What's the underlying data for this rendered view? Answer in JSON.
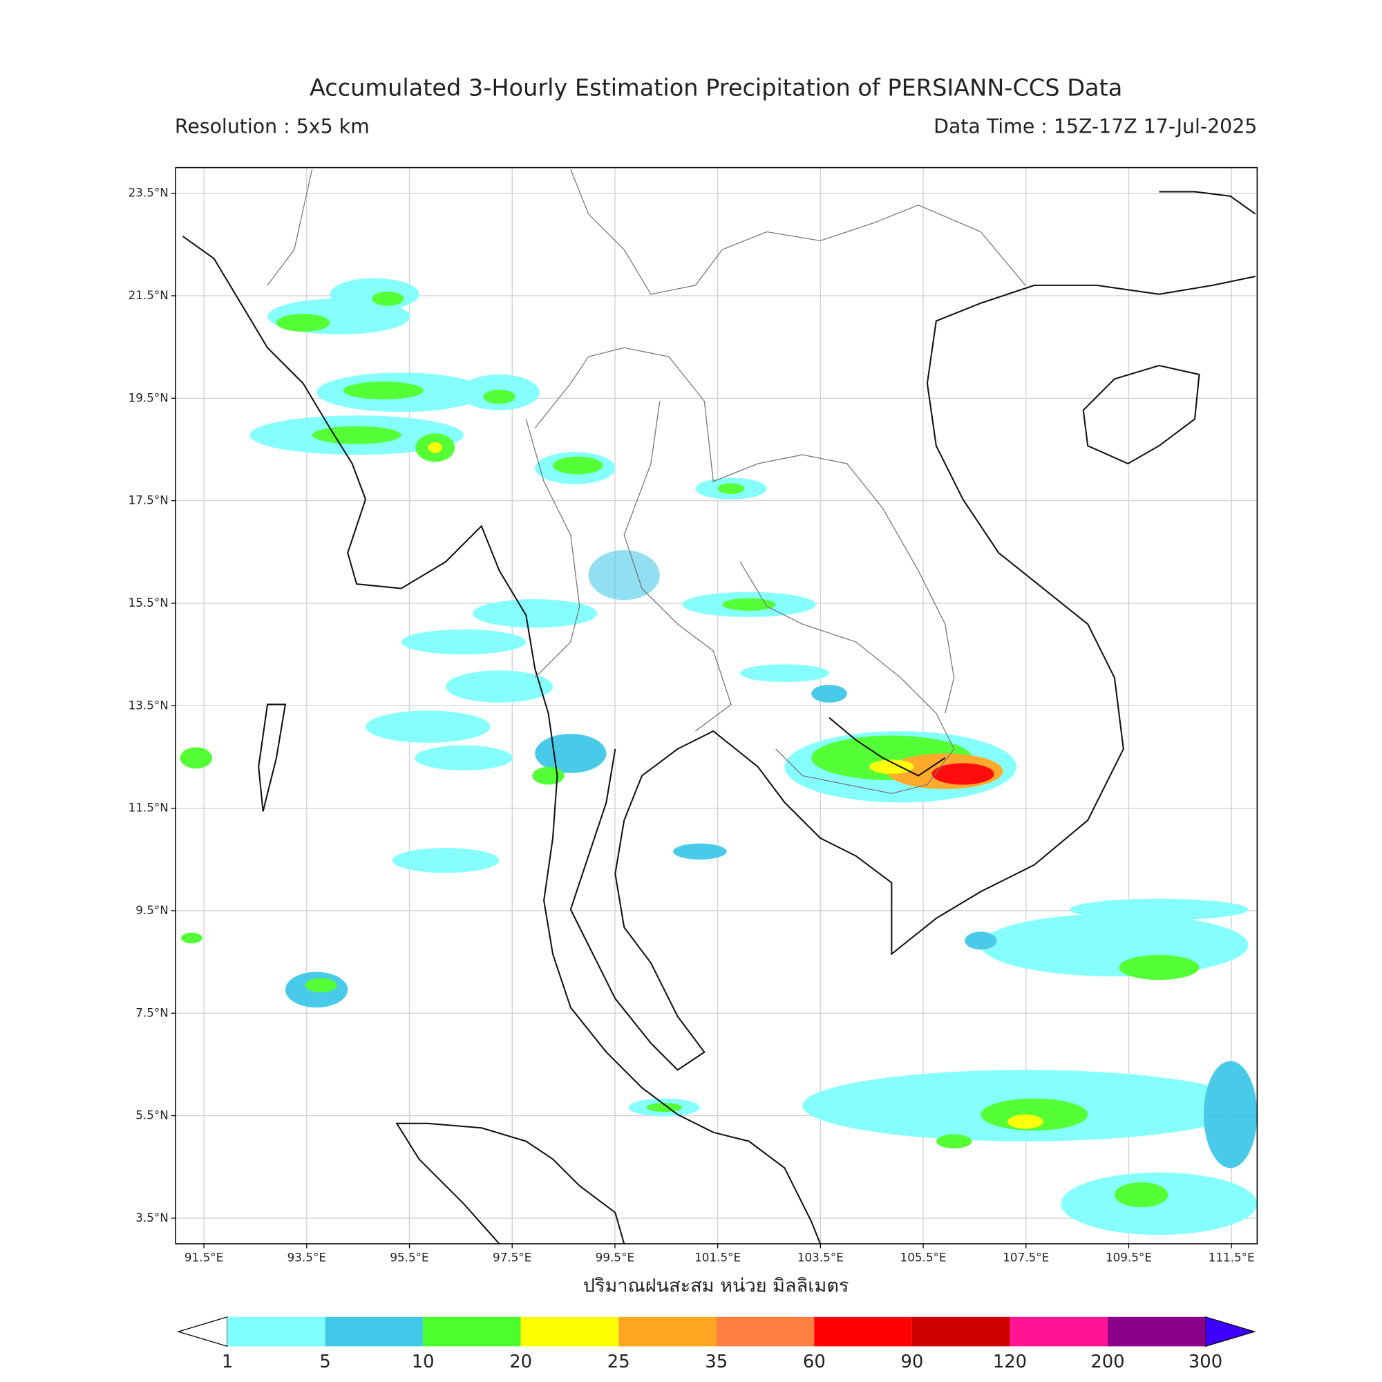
{
  "header": {
    "title": "Accumulated 3-Hourly Estimation Precipitation of PERSIANN-CCS Data",
    "resolution": "Resolution : 5x5 km",
    "data_time": "Data Time : 15Z-17Z 17-Jul-2025"
  },
  "map": {
    "xlim": [
      90.95,
      112.0
    ],
    "ylim": [
      3.0,
      24.0
    ],
    "lon_ticks": [
      {
        "value": 91.5,
        "label": "91.5°E"
      },
      {
        "value": 93.5,
        "label": "93.5°E"
      },
      {
        "value": 95.5,
        "label": "95.5°E"
      },
      {
        "value": 97.5,
        "label": "97.5°E"
      },
      {
        "value": 99.5,
        "label": "99.5°E"
      },
      {
        "value": 101.5,
        "label": "101.5°E"
      },
      {
        "value": 103.5,
        "label": "103.5°E"
      },
      {
        "value": 105.5,
        "label": "105.5°E"
      },
      {
        "value": 107.5,
        "label": "107.5°E"
      },
      {
        "value": 109.5,
        "label": "109.5°E"
      },
      {
        "value": 111.5,
        "label": "111.5°E"
      }
    ],
    "lat_ticks": [
      {
        "value": 3.5,
        "label": "3.5°N"
      },
      {
        "value": 5.5,
        "label": "5.5°N"
      },
      {
        "value": 7.5,
        "label": "7.5°N"
      },
      {
        "value": 9.5,
        "label": "9.5°N"
      },
      {
        "value": 11.5,
        "label": "11.5°N"
      },
      {
        "value": 13.5,
        "label": "13.5°N"
      },
      {
        "value": 15.5,
        "label": "15.5°N"
      },
      {
        "value": 17.5,
        "label": "17.5°N"
      },
      {
        "value": 19.5,
        "label": "19.5°N"
      },
      {
        "value": 21.5,
        "label": "21.5°N"
      },
      {
        "value": 23.5,
        "label": "23.5°N"
      }
    ],
    "xlabel": "ปริมาณฝนสะสม หน่วย มิลลิเมตร",
    "grid": true
  },
  "colorbar": {
    "levels": [
      1,
      5,
      10,
      20,
      25,
      35,
      60,
      90,
      120,
      200,
      300
    ],
    "colors": [
      "#80ffff",
      "#40c8e8",
      "#4cff2c",
      "#ffff00",
      "#ffa620",
      "#ff7f40",
      "#ff0000",
      "#cc0000",
      "#ff1493",
      "#8b008b"
    ],
    "under_color": "#ffffff",
    "over_color": "#3f00ff"
  }
}
